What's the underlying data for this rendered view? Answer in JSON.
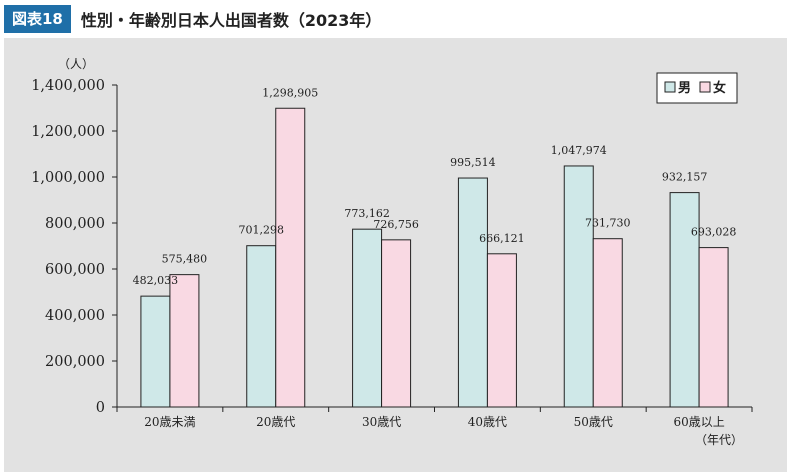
{
  "header": {
    "badge": "図表18",
    "title": "性別・年齢別日本人出国者数（2023年）"
  },
  "colors": {
    "male": "#cfe8e8",
    "female": "#f9d9e3",
    "badge": "#1f6fa8",
    "panel": "#e2e2e2"
  },
  "chart_data": {
    "type": "bar",
    "title": "性別・年齢別日本人出国者数（2023年）",
    "ylabel": "（人）",
    "xlabel": "（年代）",
    "ylim": [
      0,
      1400000
    ],
    "yticks": [
      0,
      200000,
      400000,
      600000,
      800000,
      1000000,
      1200000,
      1400000
    ],
    "ytick_labels": [
      "0",
      "200,000",
      "400,000",
      "600,000",
      "800,000",
      "1,000,000",
      "1,200,000",
      "1,400,000"
    ],
    "categories": [
      "20歳未満",
      "20歳代",
      "30歳代",
      "40歳代",
      "50歳代",
      "60歳以上"
    ],
    "series": [
      {
        "name": "男",
        "values": [
          482033,
          701298,
          773162,
          995514,
          1047974,
          932157
        ],
        "labels": [
          "482,033",
          "701,298",
          "773,162",
          "995,514",
          "1,047,974",
          "932,157"
        ]
      },
      {
        "name": "女",
        "values": [
          575480,
          1298905,
          726756,
          666121,
          731730,
          693028
        ],
        "labels": [
          "575,480",
          "1,298,905",
          "726,756",
          "666,121",
          "731,730",
          "693,028"
        ]
      }
    ],
    "legend_position": "top-right",
    "grid": false
  }
}
